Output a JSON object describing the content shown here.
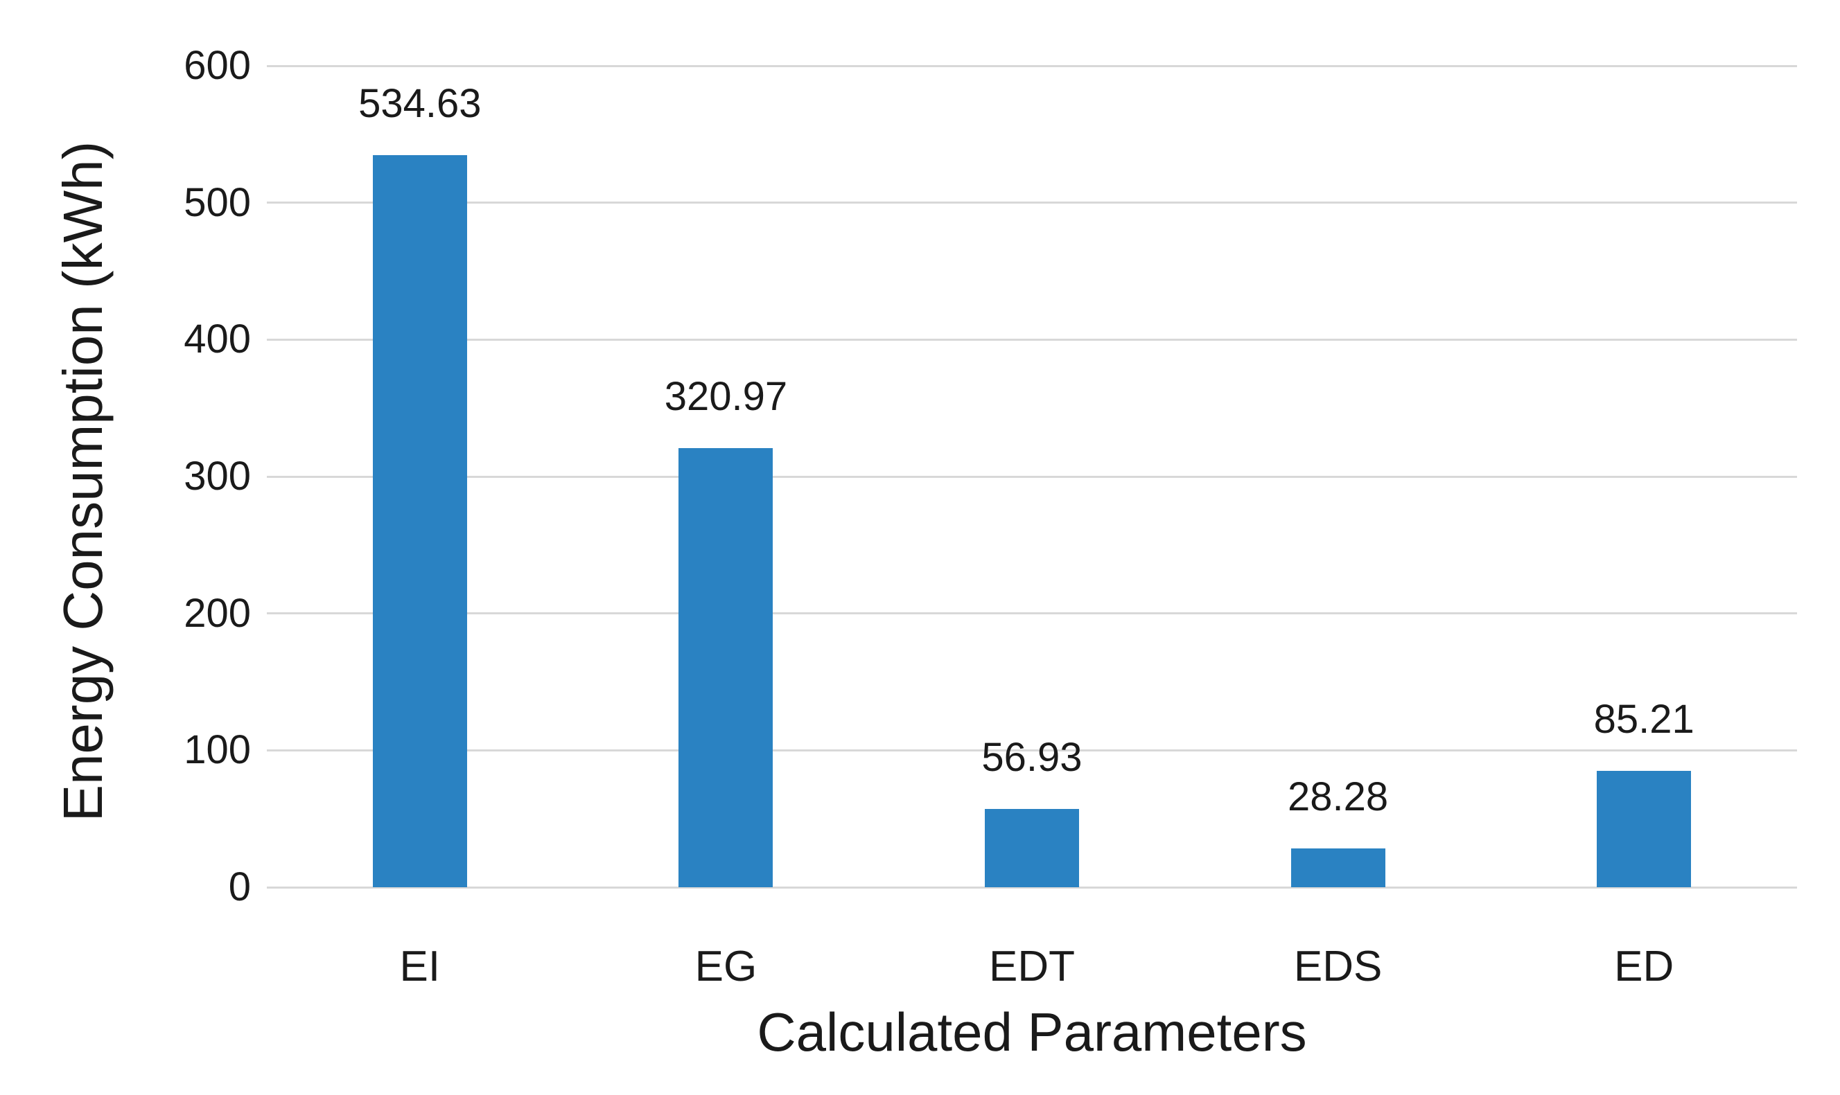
{
  "chart_data": {
    "type": "bar",
    "title": "",
    "xlabel": "Calculated Parameters",
    "ylabel": "Energy Consumption (kWh)",
    "categories": [
      "EI",
      "EG",
      "EDT",
      "EDS",
      "ED"
    ],
    "values": [
      534.63,
      320.97,
      56.93,
      28.28,
      85.21
    ],
    "data_labels": [
      "534.63",
      "320.97",
      "56.93",
      "28.28",
      "85.21"
    ],
    "ylim": [
      0,
      600
    ],
    "yticks": [
      0,
      100,
      200,
      300,
      400,
      500,
      600
    ],
    "ytick_labels": [
      "0",
      "100",
      "200",
      "300",
      "400",
      "500",
      "600"
    ],
    "grid": "horizontal",
    "legend": "none",
    "bar_color": "#2a82c2",
    "gridline_color": "#d8d8d8",
    "text_color": "#1a1a1a",
    "background_color": "#ffffff"
  }
}
